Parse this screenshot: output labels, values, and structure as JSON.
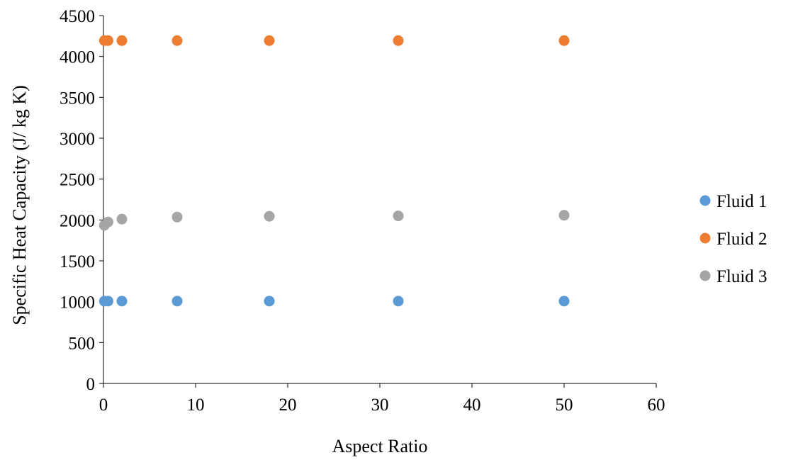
{
  "chart_data": {
    "type": "scatter",
    "title": "",
    "xlabel": "Aspect Ratio",
    "ylabel": "Specific Heat Capacity (J/ kg K)",
    "xlim": [
      0,
      60
    ],
    "ylim": [
      0,
      4500
    ],
    "xticks": [
      0,
      10,
      20,
      30,
      40,
      50,
      60
    ],
    "yticks": [
      0,
      500,
      1000,
      1500,
      2000,
      2500,
      3000,
      3500,
      4000,
      4500
    ],
    "grid": false,
    "legend_position": "right",
    "series": [
      {
        "name": "Fluid 1",
        "color": "#5B9BD5",
        "x": [
          0.1,
          0.5,
          2,
          8,
          18,
          32,
          50
        ],
        "y": [
          1007,
          1007,
          1007,
          1007,
          1007,
          1007,
          1007
        ]
      },
      {
        "name": "Fluid 2",
        "color": "#ED7D31",
        "x": [
          0.1,
          0.5,
          2,
          8,
          18,
          32,
          50
        ],
        "y": [
          4194,
          4194,
          4194,
          4194,
          4194,
          4194,
          4194
        ]
      },
      {
        "name": "Fluid 3",
        "color": "#A5A5A5",
        "x": [
          0.1,
          0.5,
          2,
          8,
          18,
          32,
          50
        ],
        "y": [
          1935,
          1975,
          2010,
          2035,
          2045,
          2050,
          2058
        ]
      }
    ]
  }
}
